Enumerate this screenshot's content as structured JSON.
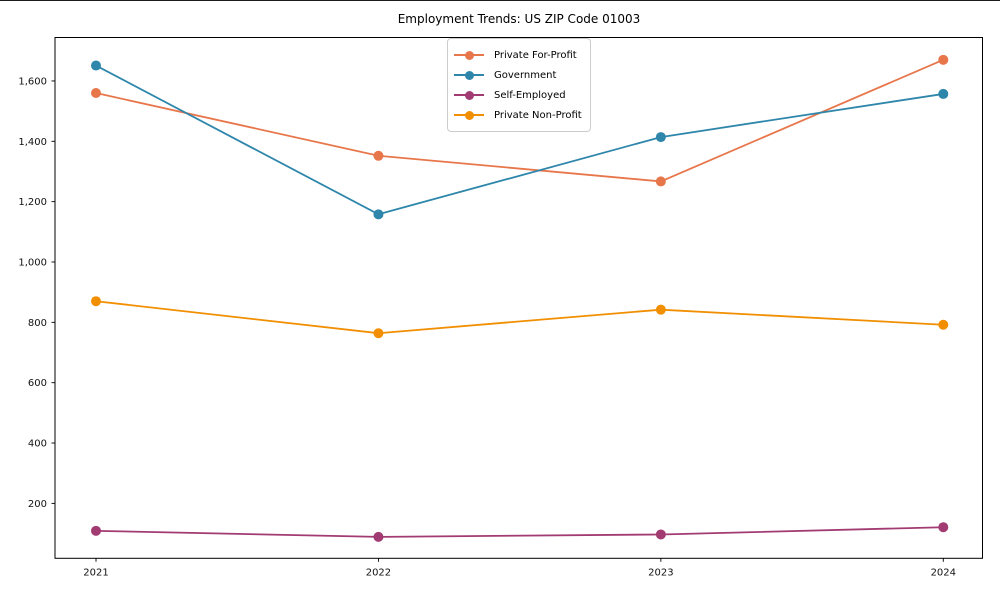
{
  "chart_data": {
    "type": "line",
    "title": "Employment Trends: US ZIP Code 01003",
    "categories": [
      "2021",
      "2022",
      "2023",
      "2024"
    ],
    "series": [
      {
        "name": "Private For-Profit",
        "color": "#E8764B",
        "values": [
          1560,
          1352,
          1267,
          1670
        ]
      },
      {
        "name": "Government",
        "color": "#2E86AB",
        "values": [
          1651,
          1158,
          1414,
          1557
        ]
      },
      {
        "name": "Self-Employed",
        "color": "#A23B72",
        "values": [
          109,
          89,
          97,
          121
        ]
      },
      {
        "name": "Private Non-Profit",
        "color": "#F18F01",
        "values": [
          870,
          764,
          842,
          792
        ]
      }
    ],
    "xlabel": "",
    "ylabel": "",
    "yticks": [
      200,
      400,
      600,
      800,
      1000,
      1200,
      1400,
      1600
    ],
    "ytick_labels": [
      "200",
      "400",
      "600",
      "800",
      "1,000",
      "1,200",
      "1,400",
      "1,600"
    ],
    "ylim": [
      18,
      1744
    ],
    "grid": false,
    "legend_position": "upper center",
    "axis_color": "#000000",
    "tick_label_color": "#111111",
    "legend_border_color": "#cccccc"
  }
}
